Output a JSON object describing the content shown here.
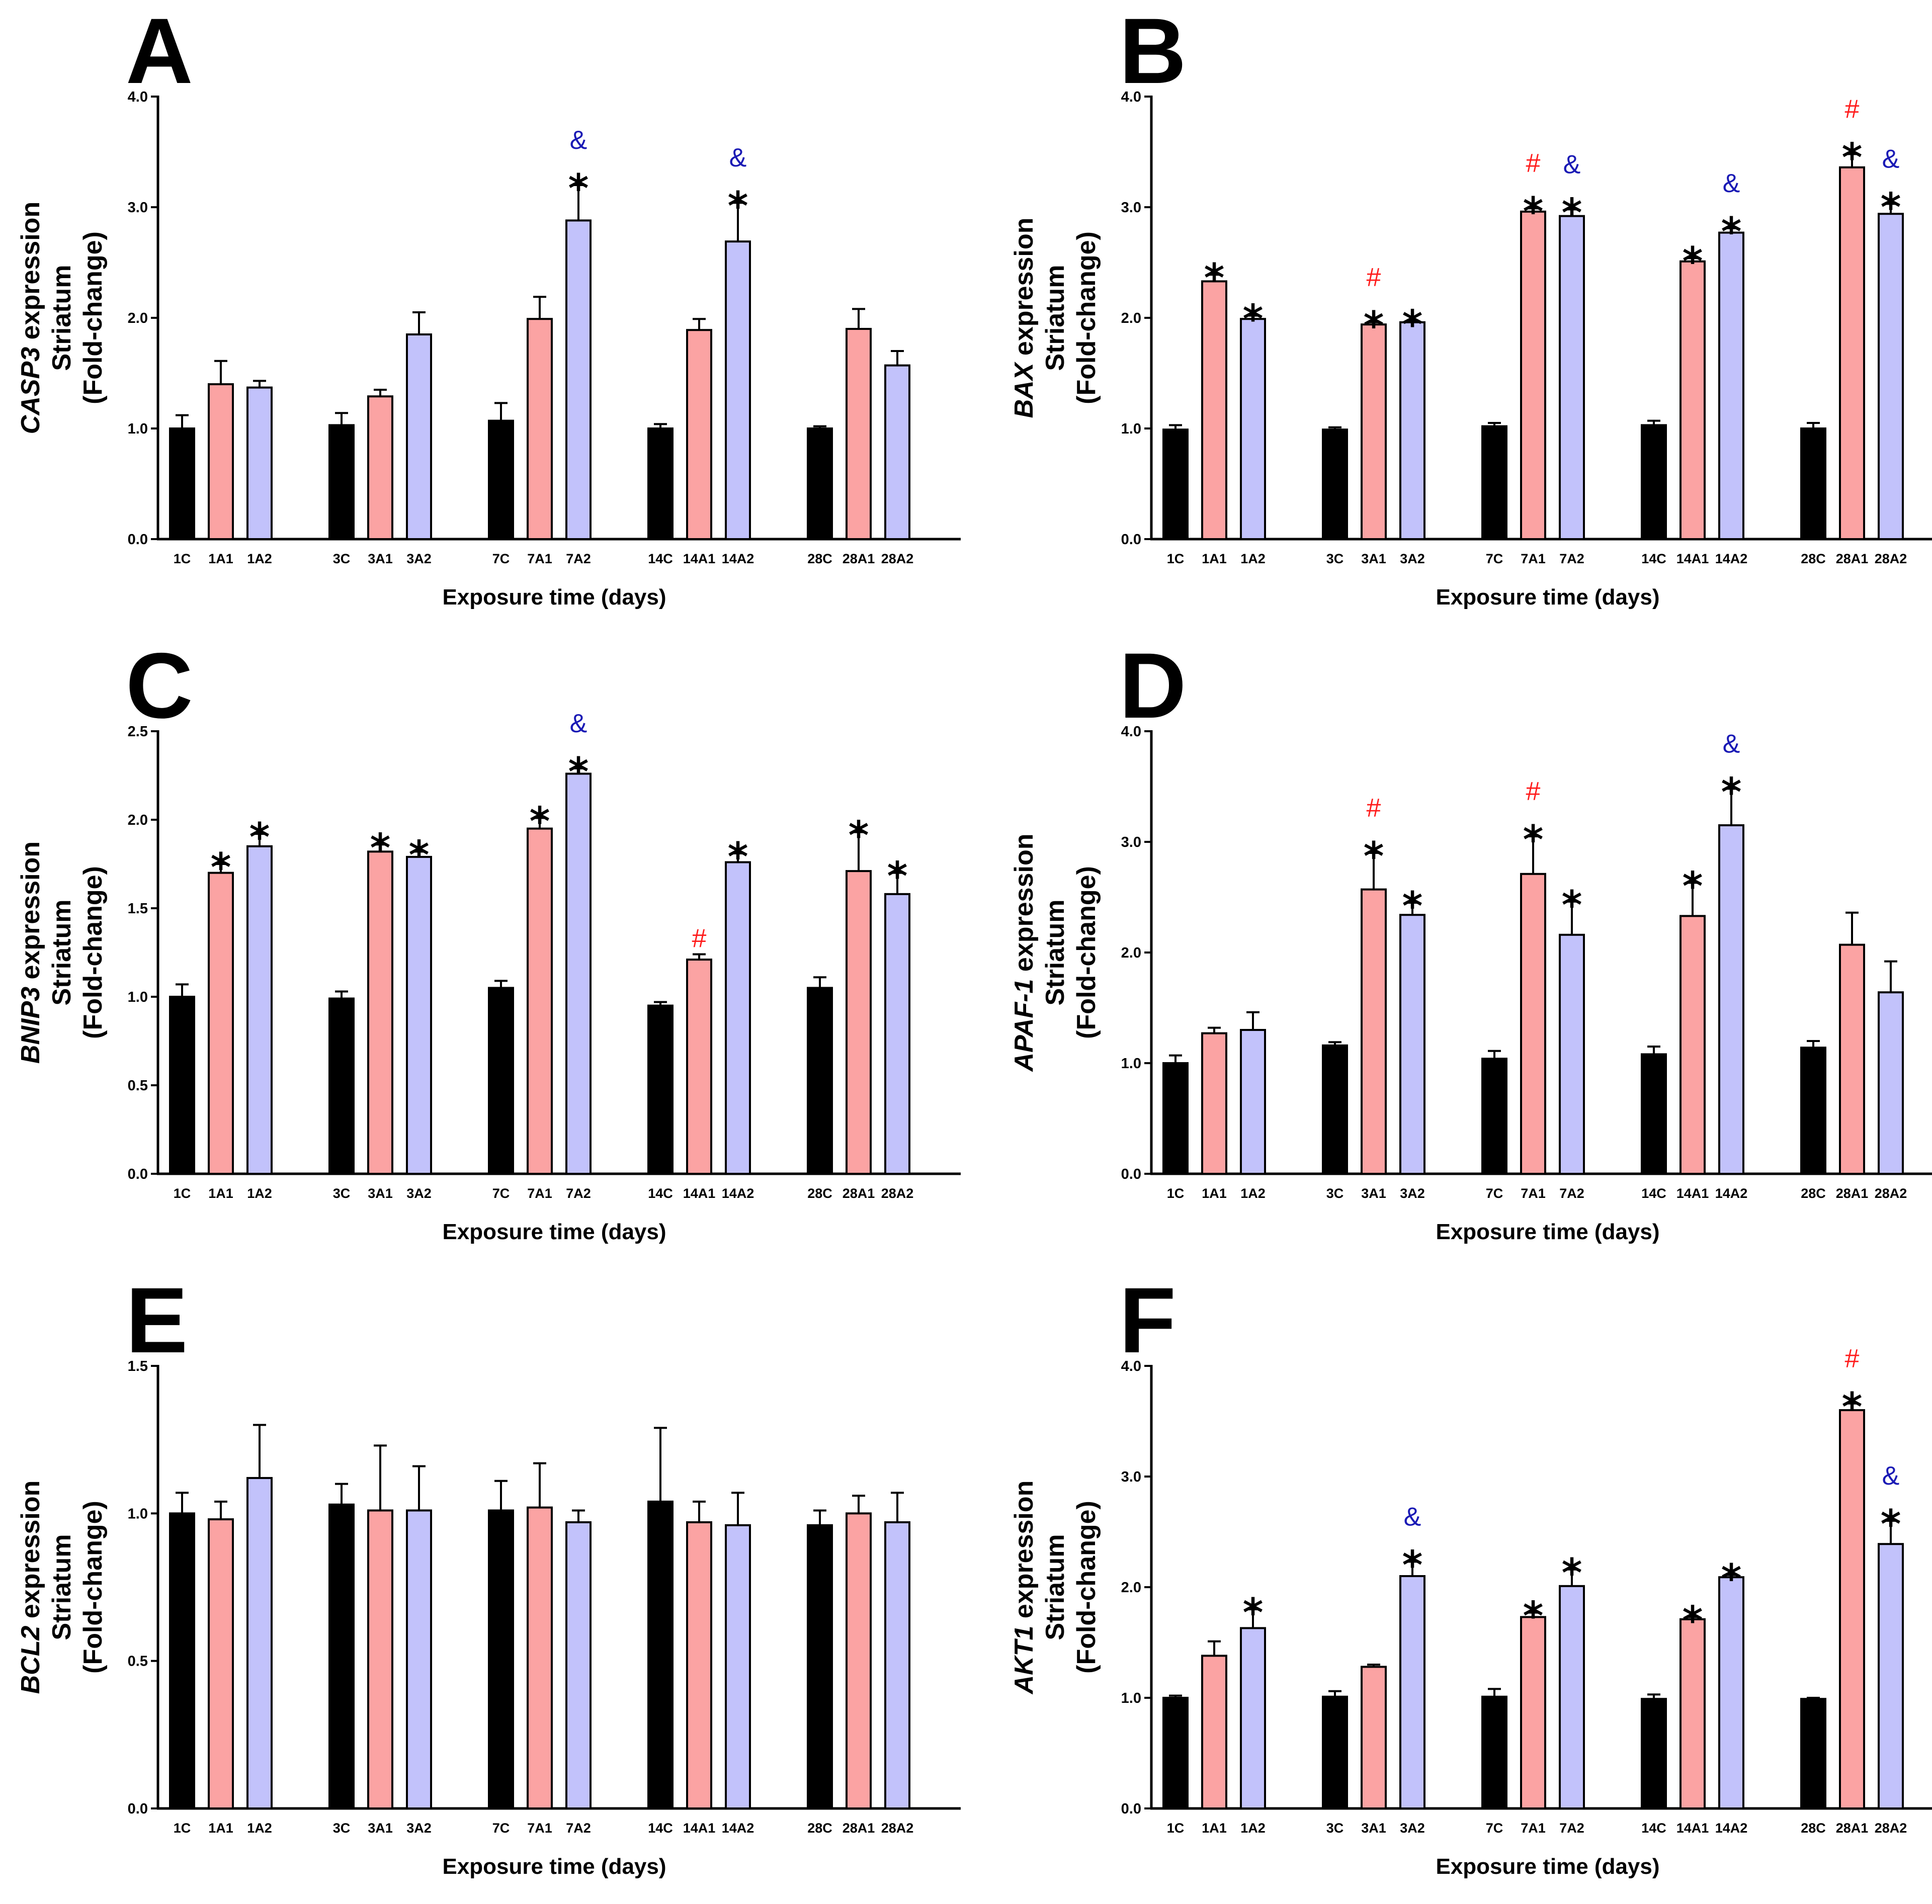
{
  "style": {
    "control_color": "#000000",
    "a1_color": "#fba3a3",
    "a2_color": "#c2c2fb",
    "hash_color": "#ff1a1a",
    "amp_color": "#1a1ab5",
    "star": "*",
    "hash": "#",
    "amp": "&"
  },
  "chart_data": [
    {
      "panel": "A",
      "type": "bar",
      "gene": "CASP3",
      "ylabel_suffix": " expression",
      "ylabel_line2": "Striatum",
      "ylabel_line3": "(Fold-change)",
      "xlabel": "Exposure time (days)",
      "ylim": [
        0,
        4.0
      ],
      "yticks": [
        "0.0",
        "1.0",
        "2.0",
        "3.0",
        "4.0"
      ],
      "categories": [
        "1C",
        "1A1",
        "1A2",
        "3C",
        "3A1",
        "3A2",
        "7C",
        "7A1",
        "7A2",
        "14C",
        "14A1",
        "14A2",
        "28C",
        "28A1",
        "28A2"
      ],
      "values": [
        1.0,
        1.4,
        1.37,
        1.03,
        1.29,
        1.85,
        1.07,
        1.99,
        2.88,
        1.0,
        1.89,
        2.69,
        1.0,
        1.9,
        1.57
      ],
      "errors": [
        0.12,
        0.21,
        0.06,
        0.11,
        0.06,
        0.2,
        0.16,
        0.2,
        0.32,
        0.04,
        0.1,
        0.35,
        0.02,
        0.18,
        0.13
      ],
      "markers": [
        "",
        "",
        "",
        "",
        "",
        "",
        "",
        "",
        "*&",
        "",
        "",
        "*&",
        "",
        "",
        ""
      ]
    },
    {
      "panel": "B",
      "type": "bar",
      "gene": "BAX",
      "ylabel_suffix": " expression",
      "ylabel_line2": "Striatum",
      "ylabel_line3": "(Fold-change)",
      "xlabel": "Exposure time (days)",
      "ylim": [
        0,
        4.0
      ],
      "yticks": [
        "0.0",
        "1.0",
        "2.0",
        "3.0",
        "4.0"
      ],
      "categories": [
        "1C",
        "1A1",
        "1A2",
        "3C",
        "3A1",
        "3A2",
        "7C",
        "7A1",
        "7A2",
        "14C",
        "14A1",
        "14A2",
        "28C",
        "28A1",
        "28A2"
      ],
      "values": [
        0.99,
        2.33,
        1.99,
        0.99,
        1.94,
        1.96,
        1.02,
        2.96,
        2.92,
        1.03,
        2.51,
        2.77,
        1.0,
        3.36,
        2.94
      ],
      "errors": [
        0.04,
        0.06,
        0.03,
        0.02,
        0.02,
        0.01,
        0.03,
        0.03,
        0.06,
        0.04,
        0.03,
        0.04,
        0.05,
        0.12,
        0.09
      ],
      "markers": [
        "",
        "*",
        "*",
        "",
        "*#",
        "*",
        "",
        "*#",
        "*&",
        "",
        "*",
        "*&",
        "",
        "*#",
        "*&"
      ]
    },
    {
      "panel": "C",
      "type": "bar",
      "gene": "BNIP3",
      "ylabel_suffix": " expression",
      "ylabel_line2": "Striatum",
      "ylabel_line3": "(Fold-change)",
      "xlabel": "Exposure time (days)",
      "ylim": [
        0,
        2.5
      ],
      "yticks": [
        "0.0",
        "0.5",
        "1.0",
        "1.5",
        "2.0",
        "2.5"
      ],
      "categories": [
        "1C",
        "1A1",
        "1A2",
        "3C",
        "3A1",
        "3A2",
        "7C",
        "7A1",
        "7A2",
        "14C",
        "14A1",
        "14A2",
        "28C",
        "28A1",
        "28A2"
      ],
      "values": [
        1.0,
        1.7,
        1.85,
        0.99,
        1.82,
        1.79,
        1.05,
        1.95,
        2.26,
        0.95,
        1.21,
        1.76,
        1.05,
        1.71,
        1.58
      ],
      "errors": [
        0.07,
        0.05,
        0.07,
        0.04,
        0.04,
        0.03,
        0.04,
        0.06,
        0.03,
        0.02,
        0.03,
        0.05,
        0.06,
        0.22,
        0.12
      ],
      "markers": [
        "",
        "*",
        "*",
        "",
        "*",
        "*",
        "",
        "*",
        "*&",
        "",
        "#",
        "*",
        "",
        "*",
        "*"
      ]
    },
    {
      "panel": "D",
      "type": "bar",
      "gene": "APAF-1",
      "ylabel_suffix": " expression",
      "ylabel_line2": "Striatum",
      "ylabel_line3": "(Fold-change)",
      "xlabel": "Exposure time (days)",
      "ylim": [
        0,
        4.0
      ],
      "yticks": [
        "0.0",
        "1.0",
        "2.0",
        "3.0",
        "4.0"
      ],
      "categories": [
        "1C",
        "1A1",
        "1A2",
        "3C",
        "3A1",
        "3A2",
        "7C",
        "7A1",
        "7A2",
        "14C",
        "14A1",
        "14A2",
        "28C",
        "28A1",
        "28A2"
      ],
      "values": [
        1.0,
        1.27,
        1.3,
        1.16,
        2.57,
        2.34,
        1.04,
        2.71,
        2.16,
        1.08,
        2.33,
        3.15,
        1.14,
        2.07,
        1.64
      ],
      "errors": [
        0.07,
        0.05,
        0.16,
        0.03,
        0.33,
        0.11,
        0.07,
        0.34,
        0.3,
        0.07,
        0.3,
        0.33,
        0.06,
        0.29,
        0.28
      ],
      "markers": [
        "",
        "",
        "",
        "",
        "*#",
        "*",
        "",
        "*#",
        "*",
        "",
        "*",
        "*&",
        "",
        "",
        ""
      ]
    },
    {
      "panel": "E",
      "type": "bar",
      "gene": "BCL2",
      "ylabel_suffix": " expression",
      "ylabel_line2": "Striatum",
      "ylabel_line3": "(Fold-change)",
      "xlabel": "Exposure time (days)",
      "ylim": [
        0,
        1.5
      ],
      "yticks": [
        "0.0",
        "0.5",
        "1.0",
        "1.5"
      ],
      "categories": [
        "1C",
        "1A1",
        "1A2",
        "3C",
        "3A1",
        "3A2",
        "7C",
        "7A1",
        "7A2",
        "14C",
        "14A1",
        "14A2",
        "28C",
        "28A1",
        "28A2"
      ],
      "values": [
        1.0,
        0.98,
        1.12,
        1.03,
        1.01,
        1.01,
        1.01,
        1.02,
        0.97,
        1.04,
        0.97,
        0.96,
        0.96,
        1.0,
        0.97
      ],
      "errors": [
        0.07,
        0.06,
        0.18,
        0.07,
        0.22,
        0.15,
        0.1,
        0.15,
        0.04,
        0.25,
        0.07,
        0.11,
        0.05,
        0.06,
        0.1
      ],
      "markers": [
        "",
        "",
        "",
        "",
        "",
        "",
        "",
        "",
        "",
        "",
        "",
        "",
        "",
        "",
        ""
      ]
    },
    {
      "panel": "F",
      "type": "bar",
      "gene": "AKT1",
      "ylabel_suffix": " expression",
      "ylabel_line2": "Striatum",
      "ylabel_line3": "(Fold-change)",
      "xlabel": "Exposure time (days)",
      "ylim": [
        0,
        4.0
      ],
      "yticks": [
        "0.0",
        "1.0",
        "2.0",
        "3.0",
        "4.0"
      ],
      "categories": [
        "1C",
        "1A1",
        "1A2",
        "3C",
        "3A1",
        "3A2",
        "7C",
        "7A1",
        "7A2",
        "14C",
        "14A1",
        "14A2",
        "28C",
        "28A1",
        "28A2"
      ],
      "values": [
        1.0,
        1.38,
        1.63,
        1.01,
        1.28,
        2.1,
        1.01,
        1.73,
        2.01,
        0.99,
        1.71,
        2.09,
        0.99,
        3.6,
        2.39
      ],
      "errors": [
        0.02,
        0.13,
        0.17,
        0.05,
        0.02,
        0.13,
        0.07,
        0.04,
        0.15,
        0.04,
        0.02,
        0.02,
        0.01,
        0.06,
        0.21
      ],
      "markers": [
        "",
        "",
        "*",
        "",
        "",
        "*&",
        "",
        "*",
        "*",
        "",
        "*",
        "*",
        "",
        "*#",
        "*&"
      ]
    }
  ]
}
